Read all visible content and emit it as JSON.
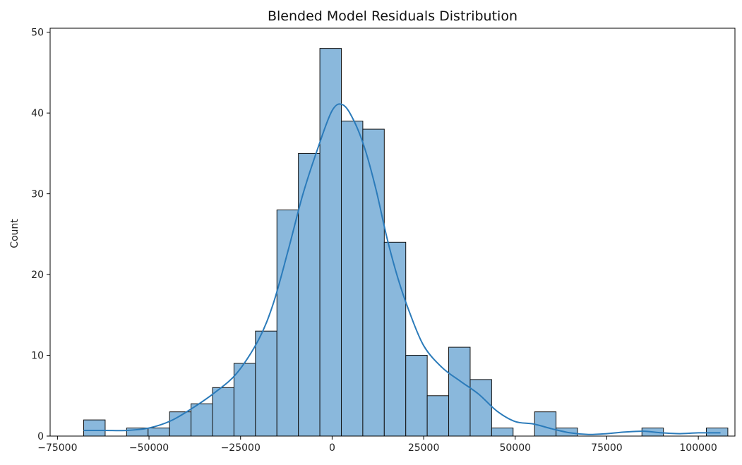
{
  "chart_data": {
    "type": "bar",
    "title": "Blended Model Residuals Distribution",
    "xlabel": "",
    "ylabel": "Count",
    "xlim": [
      -77000,
      110000
    ],
    "ylim": [
      0,
      50.5
    ],
    "xticks": [
      -75000,
      -50000,
      -25000,
      0,
      25000,
      50000,
      75000,
      100000
    ],
    "xtick_labels": [
      "−75000",
      "−50000",
      "−25000",
      "0",
      "25000",
      "50000",
      "75000",
      "100000"
    ],
    "yticks": [
      0,
      10,
      20,
      30,
      40,
      50
    ],
    "ytick_labels": [
      "0",
      "10",
      "20",
      "30",
      "40",
      "50"
    ],
    "grid": false,
    "bin_start": -67836,
    "bin_width": 5863,
    "counts": [
      2,
      0,
      1,
      1,
      3,
      4,
      6,
      9,
      13,
      28,
      35,
      48,
      39,
      38,
      24,
      10,
      5,
      11,
      7,
      1,
      0,
      3,
      1,
      0,
      0,
      0,
      1,
      0,
      0,
      1
    ],
    "kde_x": [
      -67836,
      -62000,
      -56000,
      -50000,
      -44000,
      -38000,
      -32000,
      -26000,
      -20000,
      -16000,
      -12000,
      -8000,
      -4000,
      0,
      3000,
      6000,
      9000,
      12000,
      15000,
      18000,
      21000,
      25000,
      30000,
      35000,
      40000,
      45000,
      50000,
      55000,
      60000,
      65000,
      70000,
      75000,
      80000,
      85000,
      90000,
      95000,
      100000,
      106054
    ],
    "kde_y": [
      0.7,
      0.7,
      0.7,
      1.0,
      1.9,
      3.5,
      5.4,
      7.8,
      12.0,
      16.5,
      23.0,
      29.9,
      35.5,
      40.3,
      41.0,
      39.0,
      35.5,
      30.5,
      24.5,
      19.5,
      15.5,
      11.2,
      8.5,
      6.8,
      5.2,
      3.1,
      1.8,
      1.5,
      0.9,
      0.4,
      0.2,
      0.3,
      0.5,
      0.6,
      0.4,
      0.3,
      0.4,
      0.4
    ],
    "colors": {
      "bar_fill": "#8ab8dc",
      "bar_edge": "#111111",
      "kde_line": "#2b7bba",
      "axes": "#000000",
      "text": "#222222"
    }
  }
}
